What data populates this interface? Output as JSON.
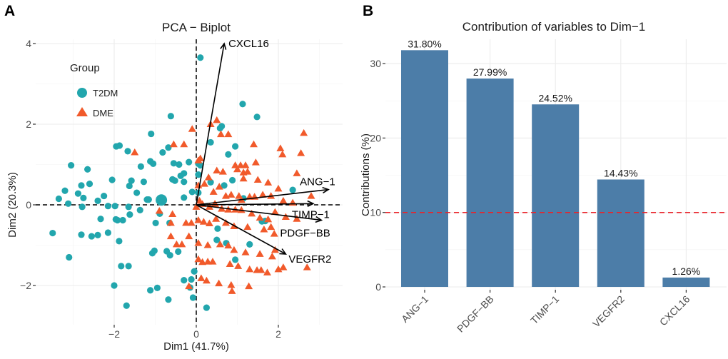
{
  "panels": {
    "a": "A",
    "b": "B"
  },
  "chart_data": [
    {
      "type": "scatter",
      "title": "PCA − Biplot",
      "xlabel": "Dim1 (41.7%)",
      "ylabel": "Dim2 (20.3%)",
      "xlim": [
        -3.8,
        3.4
      ],
      "ylim": [
        -2.6,
        4.2
      ],
      "xticks": [
        -2,
        0,
        2
      ],
      "xtick_labels": [
        "−2",
        "0",
        "2"
      ],
      "yticks": [
        -2,
        0,
        2,
        4
      ],
      "ytick_labels": [
        "−2",
        "0",
        "2",
        "4"
      ],
      "grid": true,
      "legend": {
        "title": "Group",
        "position": "top-left",
        "entries": [
          {
            "label": "T2DM",
            "shape": "circle",
            "color": "#22a6ad"
          },
          {
            "label": "DME",
            "shape": "triangle",
            "color": "#f15a2b"
          }
        ]
      },
      "series": [
        {
          "name": "T2DM",
          "color": "#22a6ad",
          "shape": "circle",
          "centroid": [
            -0.85,
            0.12
          ],
          "points": [
            [
              0.1,
              3.65
            ],
            [
              1.13,
              2.5
            ],
            [
              -0.62,
              2.2
            ],
            [
              -1.1,
              1.76
            ],
            [
              -1.95,
              1.45
            ],
            [
              -1.87,
              1.47
            ],
            [
              -1.67,
              1.33
            ],
            [
              -0.68,
              1.42
            ],
            [
              -0.82,
              1.3
            ],
            [
              -1.12,
              1.08
            ],
            [
              -1.05,
              1.02
            ],
            [
              -0.55,
              1.03
            ],
            [
              -0.42,
              1.0
            ],
            [
              -0.18,
              1.06
            ],
            [
              0.05,
              1.02
            ],
            [
              -3.05,
              0.98
            ],
            [
              -2.65,
              0.88
            ],
            [
              -1.35,
              0.95
            ],
            [
              -0.3,
              0.78
            ],
            [
              -0.38,
              0.72
            ],
            [
              -0.58,
              0.63
            ],
            [
              -1.58,
              0.6
            ],
            [
              -2.05,
              0.62
            ],
            [
              -2.8,
              0.48
            ],
            [
              -2.6,
              0.52
            ],
            [
              -1.28,
              0.57
            ],
            [
              -1.63,
              0.47
            ],
            [
              -0.52,
              0.6
            ],
            [
              -0.3,
              0.57
            ],
            [
              -0.1,
              0.32
            ],
            [
              -2.88,
              0.28
            ],
            [
              -1.45,
              0.3
            ],
            [
              -2.25,
              0.22
            ],
            [
              -3.2,
              0.35
            ],
            [
              -2.75,
              0.17
            ],
            [
              -3.35,
              0.15
            ],
            [
              -3.12,
              0.03
            ],
            [
              -1.2,
              0.13
            ],
            [
              -1.16,
              0.13
            ],
            [
              -0.3,
              0.18
            ],
            [
              -2.4,
              0.1
            ],
            [
              -2.78,
              -0.05
            ],
            [
              -2.15,
              -0.03
            ],
            [
              -1.98,
              -0.03
            ],
            [
              -1.65,
              -0.05
            ],
            [
              -1.62,
              -0.24
            ],
            [
              -1.37,
              -0.13
            ],
            [
              -2.33,
              -0.35
            ],
            [
              -1.92,
              -0.38
            ],
            [
              -1.79,
              -0.38
            ],
            [
              -1.96,
              -0.36
            ],
            [
              -0.89,
              -0.22
            ],
            [
              -0.99,
              -0.45
            ],
            [
              -0.65,
              -0.45
            ],
            [
              -2.4,
              -0.75
            ],
            [
              -2.8,
              -0.74
            ],
            [
              -2.55,
              -0.78
            ],
            [
              -3.5,
              -0.7
            ],
            [
              -2.15,
              -0.69
            ],
            [
              -1.88,
              -0.9
            ],
            [
              -3.1,
              -1.3
            ],
            [
              -1.02,
              -1.14
            ],
            [
              -1.07,
              -1.2
            ],
            [
              -0.72,
              -1.15
            ],
            [
              -0.64,
              -1.25
            ],
            [
              -0.44,
              -1.16
            ],
            [
              -1.65,
              -1.52
            ],
            [
              -1.83,
              -1.52
            ],
            [
              -2.0,
              -2.0
            ],
            [
              -1.12,
              -2.12
            ],
            [
              -0.95,
              -2.06
            ],
            [
              -0.68,
              -2.35
            ],
            [
              -1.7,
              -2.5
            ],
            [
              -0.05,
              -1.65
            ],
            [
              -0.12,
              -1.85
            ],
            [
              -0.15,
              -2.05
            ],
            [
              -0.08,
              -2.3
            ],
            [
              0.25,
              -2.55
            ],
            [
              -0.3,
              -1.87
            ],
            [
              0.5,
              -0.87
            ],
            [
              0.52,
              -0.59
            ],
            [
              0.73,
              -0.95
            ],
            [
              0.95,
              -1.36
            ],
            [
              1.3,
              -0.98
            ],
            [
              1.68,
              -0.4
            ],
            [
              1.6,
              -0.41
            ],
            [
              2.35,
              0.37
            ],
            [
              1.15,
              0.16
            ],
            [
              0.68,
              0.48
            ],
            [
              0.88,
              0.61
            ],
            [
              0.35,
              0.56
            ],
            [
              0.05,
              0.75
            ],
            [
              0.1,
              0.98
            ],
            [
              0.35,
              1.55
            ],
            [
              0.58,
              1.9
            ],
            [
              0.62,
              1.95
            ],
            [
              1.48,
              2.18
            ],
            [
              0.78,
              1.25
            ],
            [
              0.95,
              1.45
            ],
            [
              0.05,
              0.3
            ]
          ]
        },
        {
          "name": "DME",
          "color": "#f15a2b",
          "shape": "triangle",
          "points": [
            [
              -0.1,
              1.88
            ],
            [
              0.35,
              2.0
            ],
            [
              0.5,
              2.1
            ],
            [
              0.6,
              1.75
            ],
            [
              0.78,
              1.75
            ],
            [
              -0.55,
              1.5
            ],
            [
              -0.3,
              1.5
            ],
            [
              0.05,
              1.1
            ],
            [
              0.1,
              1.15
            ],
            [
              1.4,
              1.5
            ],
            [
              2.05,
              1.4
            ],
            [
              2.62,
              1.78
            ],
            [
              2.55,
              1.28
            ],
            [
              -1.5,
              1.3
            ],
            [
              1.45,
              1.05
            ],
            [
              2.1,
              1.25
            ],
            [
              0.95,
              0.98
            ],
            [
              1.08,
              0.98
            ],
            [
              1.2,
              0.98
            ],
            [
              0.5,
              0.85
            ],
            [
              0.65,
              0.82
            ],
            [
              1.0,
              0.88
            ],
            [
              1.15,
              0.8
            ],
            [
              1.25,
              0.82
            ],
            [
              1.5,
              0.62
            ],
            [
              1.75,
              0.55
            ],
            [
              2.0,
              0.4
            ],
            [
              0.3,
              0.68
            ],
            [
              0.05,
              0.48
            ],
            [
              0.2,
              0.52
            ],
            [
              0.42,
              0.32
            ],
            [
              0.56,
              0.45
            ],
            [
              0.72,
              0.22
            ],
            [
              0.85,
              0.25
            ],
            [
              1.04,
              0.22
            ],
            [
              1.1,
              0.12
            ],
            [
              1.3,
              0.2
            ],
            [
              1.42,
              0.2
            ],
            [
              1.62,
              0.25
            ],
            [
              1.82,
              0.22
            ],
            [
              2.12,
              0.1
            ],
            [
              2.35,
              0.05
            ],
            [
              0.08,
              0.1
            ],
            [
              0.15,
              0.02
            ],
            [
              0.32,
              -0.05
            ],
            [
              0.46,
              0.02
            ],
            [
              0.62,
              -0.1
            ],
            [
              0.78,
              -0.12
            ],
            [
              0.95,
              -0.12
            ],
            [
              1.1,
              -0.13
            ],
            [
              1.35,
              -0.22
            ],
            [
              1.55,
              -0.32
            ],
            [
              1.75,
              -0.36
            ],
            [
              1.92,
              -0.18
            ],
            [
              2.18,
              -0.3
            ],
            [
              2.45,
              -0.35
            ],
            [
              -0.9,
              -0.15
            ],
            [
              -0.58,
              -0.23
            ],
            [
              -0.62,
              -0.45
            ],
            [
              -0.25,
              -0.45
            ],
            [
              -0.12,
              -0.45
            ],
            [
              0.05,
              -0.38
            ],
            [
              0.18,
              -0.42
            ],
            [
              0.32,
              -0.46
            ],
            [
              0.48,
              -0.35
            ],
            [
              0.72,
              -0.45
            ],
            [
              0.92,
              -0.53
            ],
            [
              1.25,
              -0.55
            ],
            [
              1.65,
              -0.61
            ],
            [
              1.82,
              -0.55
            ],
            [
              1.9,
              -0.72
            ],
            [
              -0.62,
              -0.78
            ],
            [
              -0.18,
              -0.78
            ],
            [
              -0.48,
              -0.98
            ],
            [
              -0.35,
              -0.98
            ],
            [
              0.05,
              -0.95
            ],
            [
              0.28,
              -1.0
            ],
            [
              0.58,
              -0.98
            ],
            [
              0.78,
              -1.01
            ],
            [
              0.92,
              -1.12
            ],
            [
              1.2,
              -1.18
            ],
            [
              1.55,
              -1.22
            ],
            [
              1.92,
              -1.12
            ],
            [
              1.85,
              -1.28
            ],
            [
              0.05,
              -1.35
            ],
            [
              0.15,
              -1.42
            ],
            [
              0.28,
              -1.41
            ],
            [
              0.4,
              -1.41
            ],
            [
              0.82,
              -1.47
            ],
            [
              1.02,
              -1.52
            ],
            [
              1.3,
              -1.6
            ],
            [
              1.48,
              -1.62
            ],
            [
              1.58,
              -1.62
            ],
            [
              1.73,
              -1.68
            ],
            [
              2.0,
              -1.6
            ],
            [
              2.12,
              -1.55
            ],
            [
              2.7,
              -1.55
            ],
            [
              0.12,
              -1.82
            ],
            [
              0.25,
              -1.88
            ],
            [
              0.55,
              -1.95
            ],
            [
              0.85,
              -1.99
            ],
            [
              1.28,
              -2.02
            ],
            [
              -0.18,
              -2.02
            ],
            [
              0.87,
              -2.14
            ],
            [
              0.0,
              -0.05
            ],
            [
              0.45,
              0.02
            ],
            [
              1.15,
              0.65
            ],
            [
              2.45,
              0.78
            ],
            [
              2.8,
              0.22
            ]
          ]
        }
      ],
      "variables": [
        {
          "name": "CXCL16",
          "x": 0.68,
          "y": 4.0
        },
        {
          "name": "ANG-1",
          "x": 3.22,
          "y": 0.38
        },
        {
          "name": "TIMP-1",
          "x": 2.85,
          "y": 0.03
        },
        {
          "name": "PDGF-BB",
          "x": 3.05,
          "y": -0.38
        },
        {
          "name": "VEGFR2",
          "x": 2.18,
          "y": -1.22
        }
      ],
      "reference_lines": {
        "x": 0,
        "y": 0,
        "style": "dashed"
      }
    },
    {
      "type": "bar",
      "title": "Contribution of variables to Dim−1",
      "xlabel": "",
      "ylabel": "Contributions (%)",
      "categories": [
        "ANG−1",
        "PDGF−BB",
        "TIMP−1",
        "VEGFR2",
        "CXCL16"
      ],
      "values": [
        31.8,
        27.99,
        24.52,
        14.43,
        1.26
      ],
      "value_labels": [
        "31.80%",
        "27.99%",
        "24.52%",
        "14.43%",
        "1.26%"
      ],
      "ylim": [
        0,
        33.8
      ],
      "yticks": [
        0,
        10,
        20,
        30
      ],
      "ytick_labels": [
        "0",
        "10",
        "20",
        "30"
      ],
      "bar_color": "#4c7da8",
      "reference_line": {
        "y": 10,
        "color": "#e8232a",
        "style": "dashed"
      },
      "grid": true
    }
  ]
}
